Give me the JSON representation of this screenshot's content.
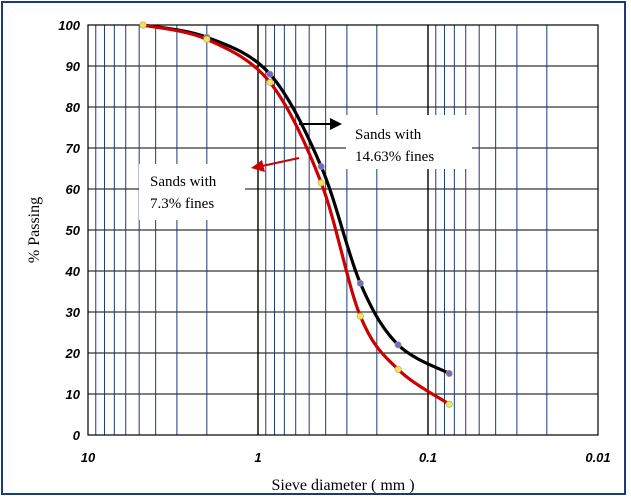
{
  "chart_data": {
    "type": "line",
    "xlabel": "Sieve diameter ( mm )",
    "ylabel": "% Passing",
    "x_scale": "log",
    "x_reversed": true,
    "xlim": [
      10,
      0.01
    ],
    "ylim": [
      0,
      100
    ],
    "x_ticks": [
      "10",
      "1",
      "0.1",
      "0.01"
    ],
    "y_ticks": [
      "0",
      "10",
      "20",
      "30",
      "40",
      "50",
      "60",
      "70",
      "80",
      "90",
      "100"
    ],
    "grid": true,
    "series": [
      {
        "name": "Sands with 14.63% fines",
        "color": "#000000",
        "marker_color": "#6a6ad8",
        "x": [
          4.75,
          2.0,
          0.85,
          0.425,
          0.25,
          0.15,
          0.075
        ],
        "y": [
          100,
          97,
          88,
          65.5,
          37,
          22,
          15
        ]
      },
      {
        "name": "Sands with 7.3% fines",
        "color": "#cc0000",
        "marker_color": "#e8e860",
        "x": [
          4.75,
          2.0,
          0.85,
          0.425,
          0.25,
          0.15,
          0.075
        ],
        "y": [
          100,
          96.5,
          86,
          61.5,
          29,
          16,
          7.5
        ]
      }
    ],
    "annotations": [
      {
        "id": "a14",
        "lines": [
          "Sands with",
          "14.63% fines"
        ]
      },
      {
        "id": "a73",
        "lines": [
          "Sands with",
          "7.3% fines"
        ]
      }
    ]
  }
}
